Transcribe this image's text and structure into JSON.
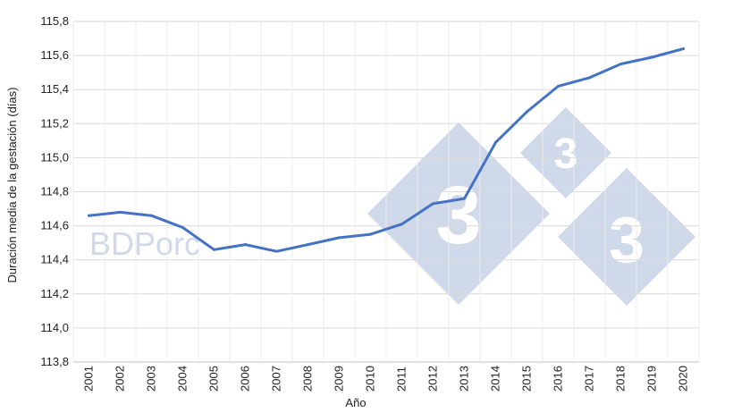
{
  "chart_data": {
    "type": "line",
    "title": "",
    "xlabel": "Año",
    "ylabel": "Duración media de la gestación (días)",
    "x": [
      "2001",
      "2002",
      "2003",
      "2004",
      "2005",
      "2006",
      "2007",
      "2008",
      "2009",
      "2010",
      "2011",
      "2012",
      "2013",
      "2014",
      "2015",
      "2016",
      "2017",
      "2018",
      "2019",
      "2020"
    ],
    "series": [
      {
        "values": [
          114.66,
          114.68,
          114.66,
          114.59,
          114.46,
          114.49,
          114.45,
          114.49,
          114.53,
          114.55,
          114.61,
          114.73,
          114.76,
          115.09,
          115.27,
          115.42,
          115.47,
          115.55,
          115.59,
          115.64
        ]
      }
    ],
    "yticks": [
      "113,8",
      "114,0",
      "114,2",
      "114,4",
      "114,6",
      "114,8",
      "115,0",
      "115,2",
      "115,4",
      "115,6",
      "115,8"
    ],
    "ylim": [
      113.8,
      115.8
    ],
    "grid": true,
    "line_color": "#4472c4"
  },
  "watermark": {
    "text": "BDPorc",
    "logo_digit": "3",
    "logo_color": "#cfd9ea"
  }
}
